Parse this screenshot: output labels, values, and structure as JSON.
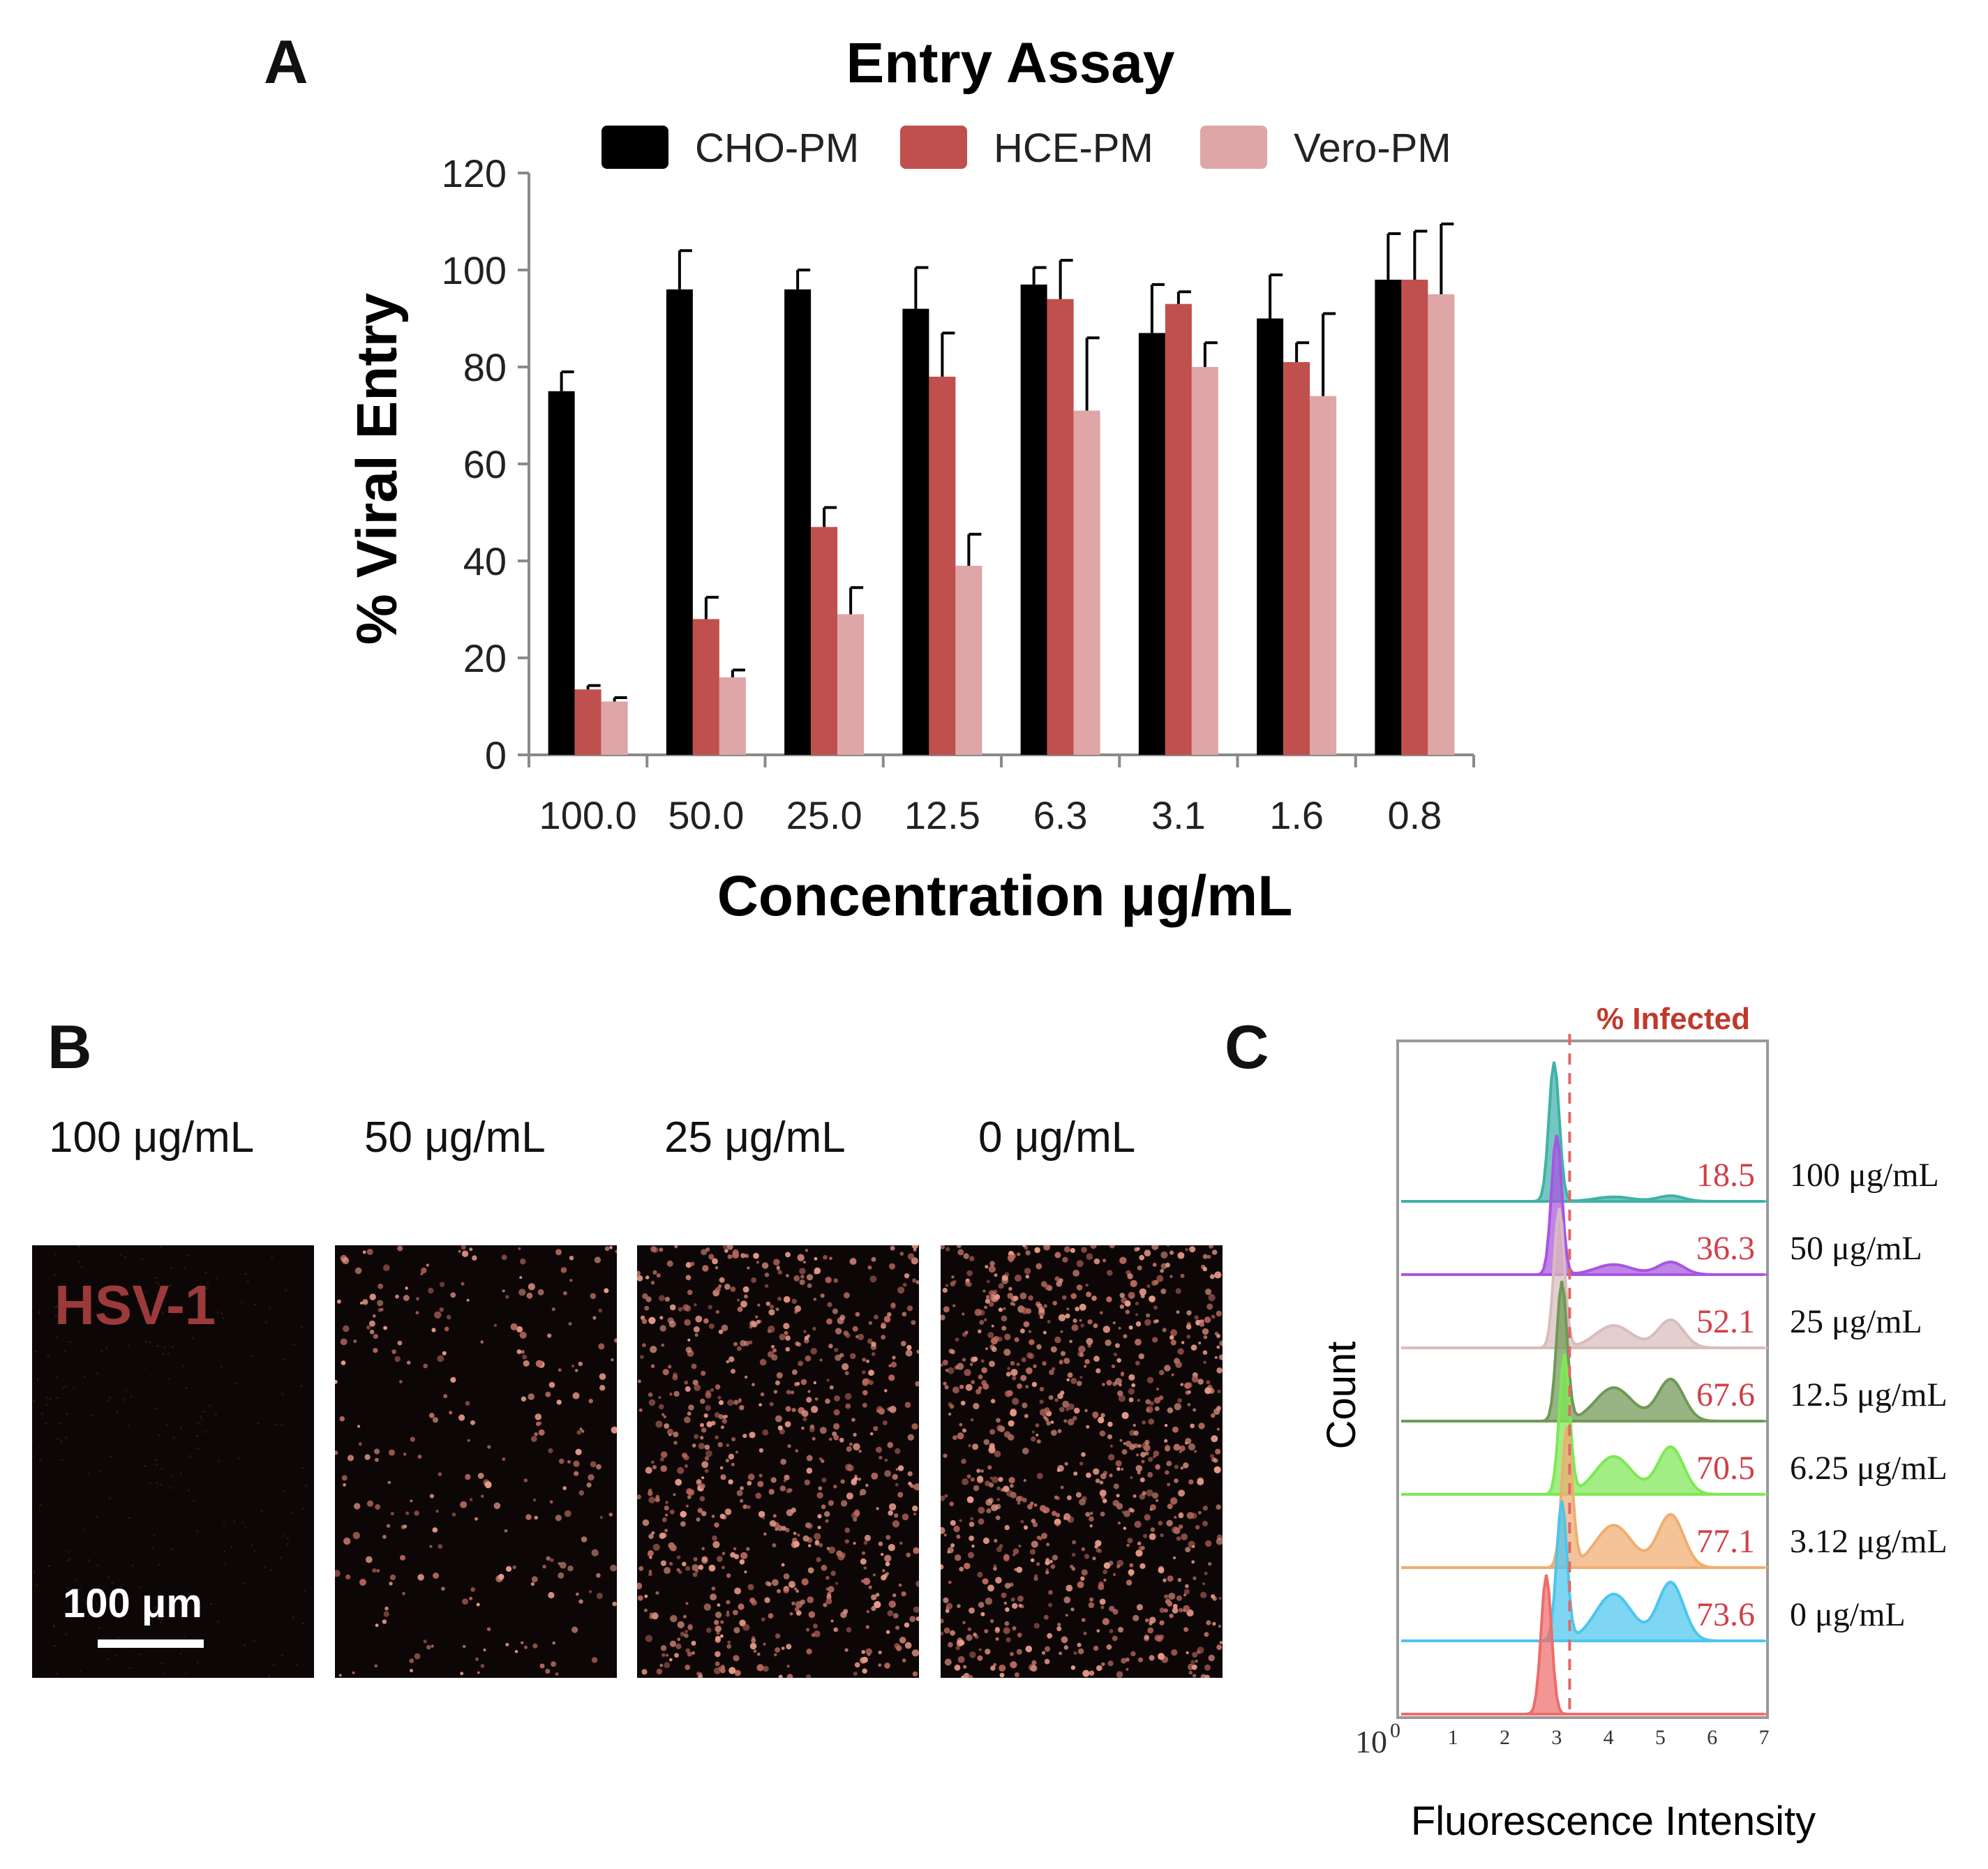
{
  "panels": {
    "a_letter": "A",
    "b_letter": "B",
    "c_letter": "C"
  },
  "chart_data": [
    {
      "type": "bar",
      "title": "Entry Assay",
      "xlabel": "Concentration μg/mL",
      "ylabel": "% Viral Entry",
      "ylim": [
        0,
        120
      ],
      "yticks": [
        "0",
        "20",
        "40",
        "60",
        "80",
        "100",
        "120"
      ],
      "categories": [
        "100.0",
        "50.0",
        "25.0",
        "12.5",
        "6.3",
        "3.1",
        "1.6",
        "0.8"
      ],
      "legend_position": "top",
      "series": [
        {
          "name": "CHO-PM",
          "color": "#000000",
          "values": [
            75,
            96,
            96,
            92,
            97,
            87,
            90,
            98
          ],
          "errors": [
            4,
            8,
            4,
            8.5,
            3.5,
            10,
            9,
            9.5
          ]
        },
        {
          "name": "HCE-PM",
          "color": "#c0504d",
          "values": [
            13.5,
            28,
            47,
            78,
            94,
            93,
            81,
            98
          ],
          "errors": [
            0.8,
            4.5,
            4,
            9,
            8,
            2.5,
            4,
            10
          ]
        },
        {
          "name": "Vero-PM",
          "color": "#dea6a6",
          "values": [
            11,
            16,
            29,
            39,
            71,
            80,
            74,
            95
          ],
          "errors": [
            0.8,
            1.5,
            5.5,
            6.5,
            15,
            5,
            17,
            14.5
          ]
        }
      ]
    },
    {
      "type": "area",
      "title": "% Infected",
      "xlabel": "Fluorescence Intensity",
      "ylabel": "Count",
      "x_axis_label": "10",
      "x_axis_exponent": "0",
      "xlim": [
        0,
        7
      ],
      "xticks": [
        "1",
        "2",
        "3",
        "4",
        "5",
        "6",
        "7"
      ],
      "gate_x": 3.25,
      "legend_position": "right",
      "series": [
        {
          "name": "100 μg/mL",
          "percent": "18.5",
          "color": "#3fb2a8",
          "peak": 2.95,
          "shoulder": 0.04
        },
        {
          "name": "50 μg/mL",
          "percent": "36.3",
          "color": "#a855e0",
          "peak": 3.0,
          "shoulder": 0.09
        },
        {
          "name": "25 μg/mL",
          "percent": "52.1",
          "color": "#d9bcbc",
          "peak": 3.05,
          "shoulder": 0.2
        },
        {
          "name": "12.5 μg/mL",
          "percent": "67.6",
          "color": "#6f9955",
          "peak": 3.1,
          "shoulder": 0.3
        },
        {
          "name": "6.25 μg/mL",
          "percent": "70.5",
          "color": "#7ee855",
          "peak": 3.15,
          "shoulder": 0.34
        },
        {
          "name": "3.12 μg/mL",
          "percent": "77.1",
          "color": "#f0ad70",
          "peak": 3.2,
          "shoulder": 0.38
        },
        {
          "name": "0 μg/mL",
          "percent": "73.6",
          "color": "#4cc6ee",
          "peak": 3.1,
          "shoulder": 0.42
        },
        {
          "name": "",
          "percent": "",
          "color": "#ee6c6c",
          "peak": 2.8,
          "shoulder": 0.0
        }
      ]
    }
  ],
  "microscopy": {
    "labels": [
      "100 μg/mL",
      "50 μg/mL",
      "25 μg/mL",
      "0 μg/mL"
    ],
    "virus": "HSV-1",
    "scale": "100 μm",
    "spot_density": [
      0,
      0.3,
      0.85,
      1.0
    ]
  }
}
